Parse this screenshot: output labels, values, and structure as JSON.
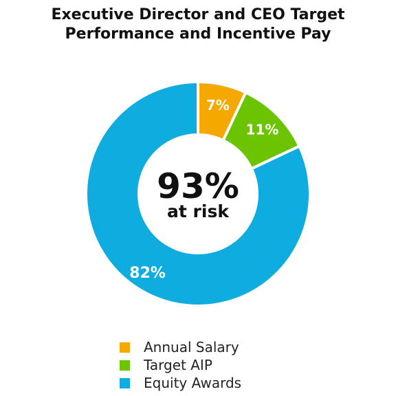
{
  "chart_data": {
    "type": "pie",
    "title_lines": [
      "Executive Director and CEO Target",
      "Performance and Incentive Pay"
    ],
    "categories": [
      "Annual Salary",
      "Target AIP",
      "Equity Awards"
    ],
    "values": [
      7,
      11,
      82
    ],
    "data_labels": [
      "7%",
      "11%",
      "82%"
    ],
    "colors": [
      "#F5A800",
      "#6CC400",
      "#0EACDF"
    ],
    "center": {
      "value": "93%",
      "caption": "at risk"
    },
    "legend_position": "bottom"
  }
}
